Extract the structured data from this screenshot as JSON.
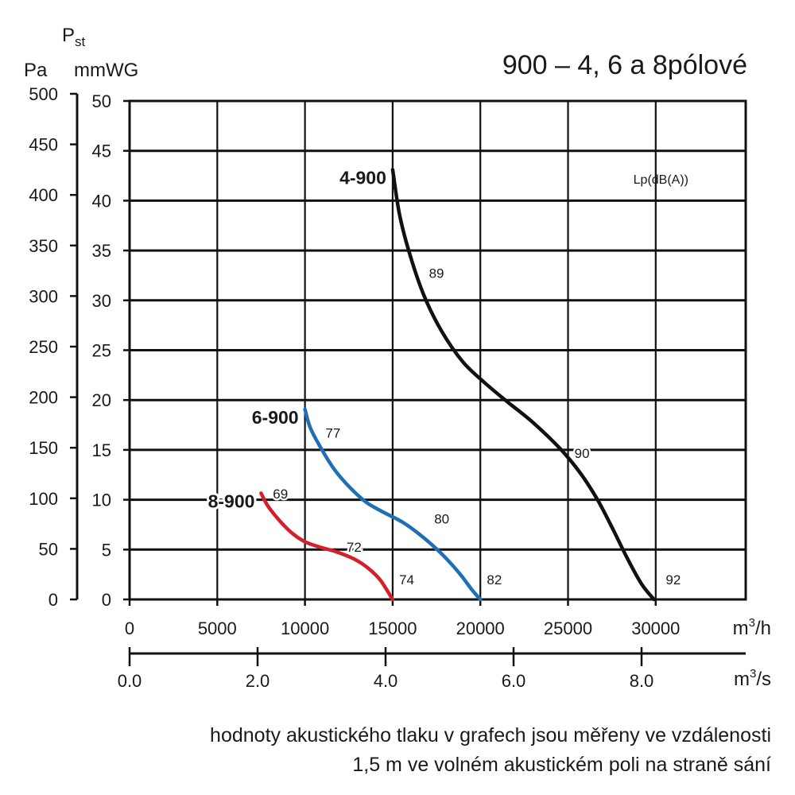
{
  "chart_data": {
    "type": "line",
    "title": "900 – 4, 6 a 8pólové",
    "y_label_top": "Pst",
    "y_unit_pa": "Pa",
    "y_unit_mmwg": "mmWG",
    "x_unit_m3h": "m3/h",
    "x_unit_m3s": "m3/s",
    "legend_text": "Lp(dB(A))",
    "ylim_pa": [
      0,
      500
    ],
    "yticks_pa": [
      "0",
      "50",
      "100",
      "150",
      "200",
      "250",
      "300",
      "350",
      "400",
      "450",
      "500"
    ],
    "ylim_mmwg": [
      0,
      50
    ],
    "yticks_mmwg": [
      "0",
      "5",
      "10",
      "15",
      "20",
      "25",
      "30",
      "35",
      "40",
      "45",
      "50"
    ],
    "xlim_m3h": [
      0,
      35000
    ],
    "xticks_m3h": [
      "0",
      "5000",
      "10000",
      "15000",
      "20000",
      "25000",
      "30000"
    ],
    "xticks_m3s": [
      "0.0",
      "2.0",
      "4.0",
      "6.0",
      "8.0"
    ],
    "grid": true,
    "series": [
      {
        "name": "4-900",
        "color": "#111111",
        "points": [
          [
            15000,
            425
          ],
          [
            15400,
            380
          ],
          [
            16000,
            340
          ],
          [
            16800,
            300
          ],
          [
            17800,
            265
          ],
          [
            19000,
            235
          ],
          [
            20200,
            215
          ],
          [
            21500,
            196
          ],
          [
            23000,
            175
          ],
          [
            24500,
            150
          ],
          [
            25700,
            125
          ],
          [
            26700,
            98
          ],
          [
            27600,
            68
          ],
          [
            28400,
            40
          ],
          [
            29200,
            15
          ],
          [
            29900,
            0
          ]
        ],
        "dba_labels": [
          {
            "text": "89",
            "x": 17500,
            "y": 318
          },
          {
            "text": "90",
            "x": 25800,
            "y": 140
          },
          {
            "text": "92",
            "x": 31000,
            "y": 15
          }
        ]
      },
      {
        "name": "6-900",
        "color": "#1e6fb5",
        "points": [
          [
            10000,
            188
          ],
          [
            10300,
            170
          ],
          [
            10900,
            150
          ],
          [
            11700,
            128
          ],
          [
            12600,
            110
          ],
          [
            13500,
            96
          ],
          [
            14500,
            86
          ],
          [
            15600,
            76
          ],
          [
            16700,
            62
          ],
          [
            17800,
            45
          ],
          [
            18800,
            26
          ],
          [
            19500,
            10
          ],
          [
            20000,
            0
          ]
        ],
        "dba_labels": [
          {
            "text": "77",
            "x": 11600,
            "y": 160
          },
          {
            "text": "80",
            "x": 17800,
            "y": 75
          },
          {
            "text": "82",
            "x": 20800,
            "y": 15
          }
        ]
      },
      {
        "name": "8-900",
        "color": "#d4202a",
        "points": [
          [
            7500,
            105
          ],
          [
            7900,
            92
          ],
          [
            8600,
            77
          ],
          [
            9300,
            65
          ],
          [
            10000,
            57
          ],
          [
            10800,
            52
          ],
          [
            11800,
            47
          ],
          [
            12800,
            40
          ],
          [
            13600,
            31
          ],
          [
            14300,
            19
          ],
          [
            15000,
            0
          ]
        ],
        "dba_labels": [
          {
            "text": "69",
            "x": 8600,
            "y": 100
          },
          {
            "text": "72",
            "x": 12800,
            "y": 47
          },
          {
            "text": "74",
            "x": 15800,
            "y": 15
          }
        ]
      }
    ]
  },
  "footnote": {
    "line1": "hodnoty akustického tlaku v grafech jsou měřeny ve vzdálenosti",
    "line2": "1,5 m ve volném akustickém poli na straně sání"
  }
}
